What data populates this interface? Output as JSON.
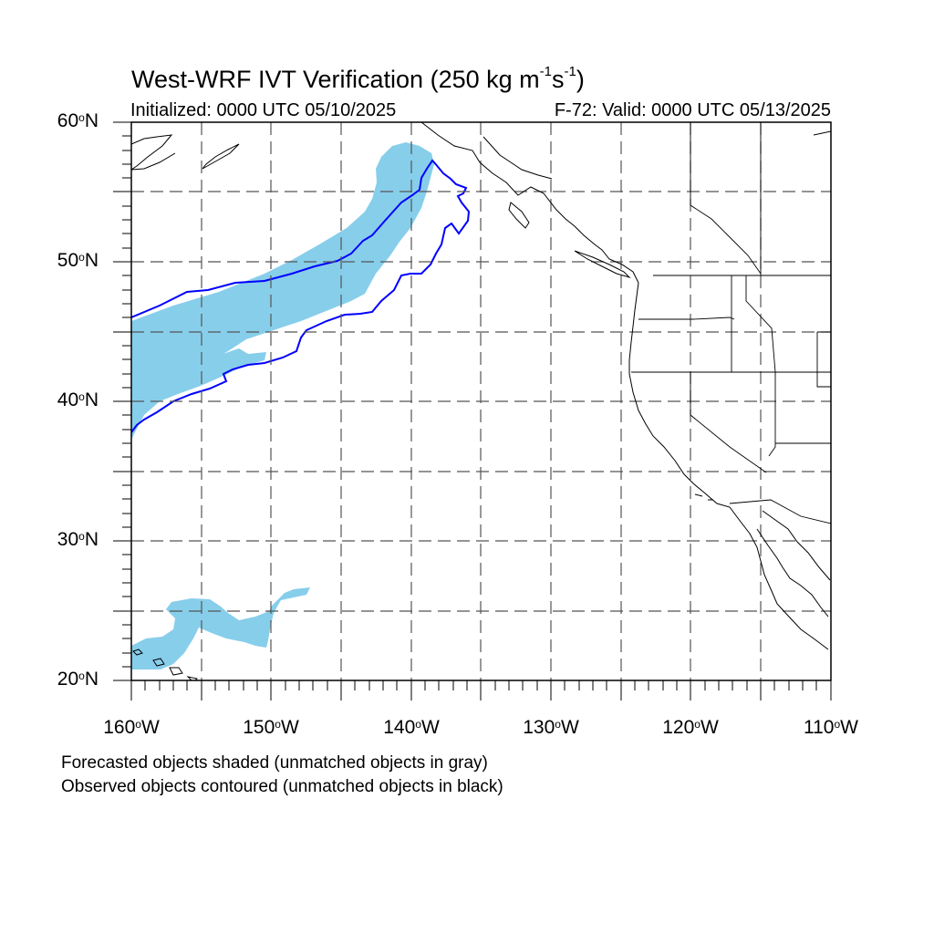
{
  "title": {
    "prefix": "West-WRF IVT Verification (250 kg m",
    "exp1": "-1",
    "mid": "s",
    "exp2": "-1",
    "suffix": ")"
  },
  "subtitle_left": "Initialized: 0000 UTC 05/10/2025",
  "subtitle_right": "F-72: Valid: 0000 UTC 05/13/2025",
  "lat_labels": [
    {
      "value": "60",
      "suffix": "N"
    },
    {
      "value": "50",
      "suffix": "N"
    },
    {
      "value": "40",
      "suffix": "N"
    },
    {
      "value": "30",
      "suffix": "N"
    },
    {
      "value": "20",
      "suffix": "N"
    }
  ],
  "lon_labels": [
    {
      "value": "160",
      "suffix": "W"
    },
    {
      "value": "150",
      "suffix": "W"
    },
    {
      "value": "140",
      "suffix": "W"
    },
    {
      "value": "130",
      "suffix": "W"
    },
    {
      "value": "120",
      "suffix": "W"
    },
    {
      "value": "110",
      "suffix": "W"
    }
  ],
  "degree_symbol": "o",
  "notes": {
    "forecast": "Forecasted objects shaded (unmatched objects in gray)",
    "observed": "Observed objects contoured (unmatched objects in black)"
  },
  "map_extent": {
    "lon": [
      -160,
      -110
    ],
    "lat": [
      20,
      60
    ]
  },
  "colors": {
    "forecast_fill": "#87ceeb",
    "observed_contour": "#0000ff",
    "coastline": "#000000",
    "grid": "#555555"
  }
}
